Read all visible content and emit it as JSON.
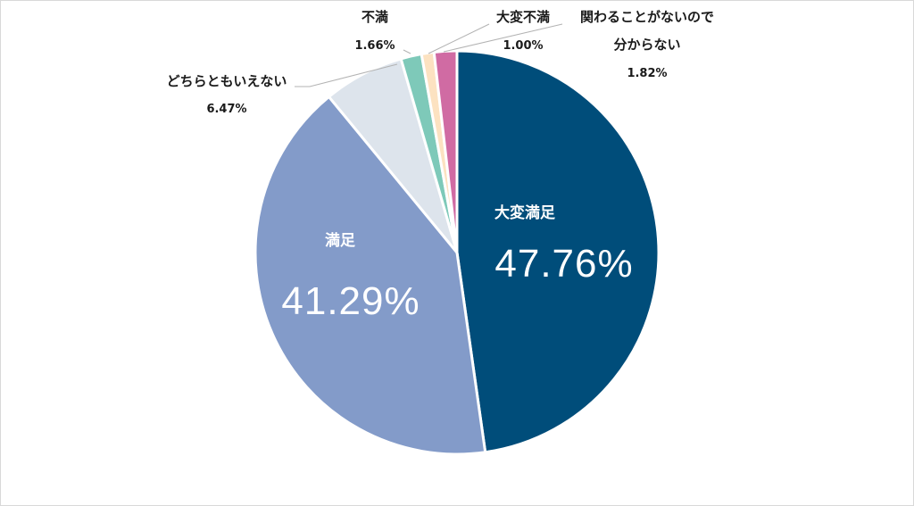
{
  "chart_data": {
    "type": "pie",
    "start_angle_deg": 0,
    "direction": "clockwise",
    "slices": [
      {
        "label": "大変満足",
        "value": 47.76,
        "display": "47.76%",
        "color": "#004d7a",
        "label_placement": "inside"
      },
      {
        "label": "満足",
        "value": 41.29,
        "display": "41.29%",
        "color": "#839bc9",
        "label_placement": "inside"
      },
      {
        "label": "どちらともいえない",
        "value": 6.47,
        "display": "6.47%",
        "color": "#dde4ec",
        "label_placement": "outside"
      },
      {
        "label": "不満",
        "value": 1.66,
        "display": "1.66%",
        "color": "#7ec9b9",
        "label_placement": "outside"
      },
      {
        "label": "大変不満",
        "value": 1.0,
        "display": "1.00%",
        "color": "#fce2c1",
        "label_placement": "outside"
      },
      {
        "label": "関わることがないので\n分からない",
        "value": 1.82,
        "display": "1.82%",
        "color": "#d06ba3",
        "label_placement": "outside"
      }
    ]
  }
}
